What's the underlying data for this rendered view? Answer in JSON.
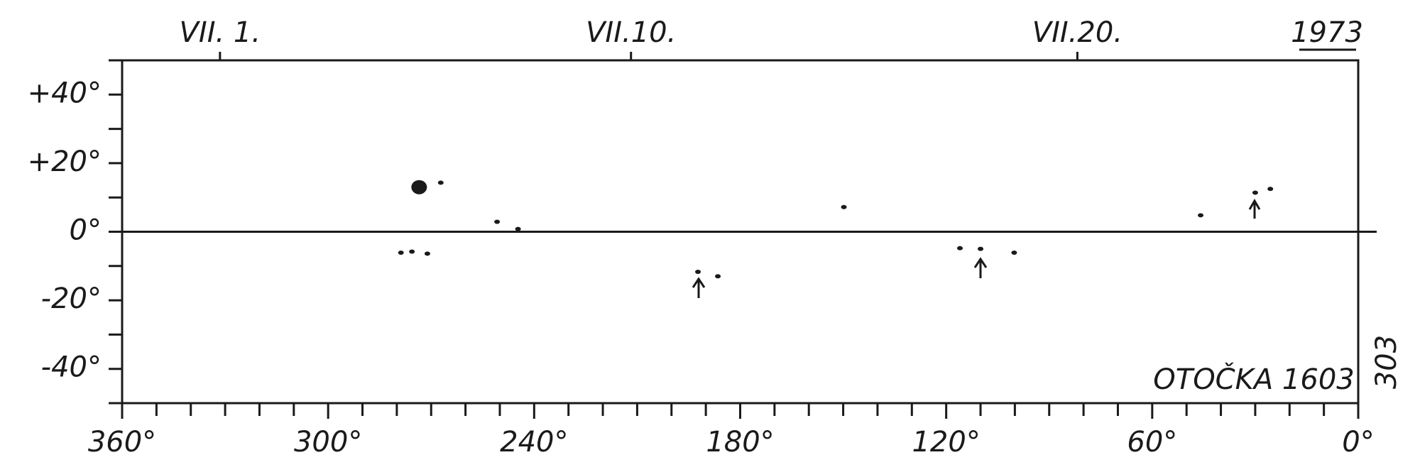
{
  "chart_data": {
    "type": "scatter",
    "title": "1973",
    "annotations": [
      "OTOČKA 1603",
      "303"
    ],
    "x": [
      273.5,
      267.2,
      250.8,
      244.7,
      278.8,
      275.6,
      271.1,
      192.3,
      186.5,
      149.8,
      116,
      110,
      100.2,
      45.9,
      30,
      25.6
    ],
    "values": [
      13,
      14.3,
      2.9,
      0.8,
      -6.1,
      -5.8,
      -6.4,
      -11.7,
      -13,
      7.2,
      -4.8,
      -5,
      -6.1,
      4.8,
      11.4,
      12.5
    ],
    "color": "#1a1a1a",
    "xlim": [
      360,
      0
    ],
    "ylim": [
      -50,
      50
    ],
    "xticks": [
      {
        "value": 360,
        "label": "360°"
      },
      {
        "value": 300,
        "label": "300°"
      },
      {
        "value": 240,
        "label": "240°"
      },
      {
        "value": 180,
        "label": "180°"
      },
      {
        "value": 120,
        "label": "120°"
      },
      {
        "value": 60,
        "label": "60°"
      },
      {
        "value": 0,
        "label": "0°"
      }
    ],
    "xminorticks": [
      350,
      340,
      330,
      320,
      310,
      290,
      280,
      270,
      260,
      250,
      230,
      220,
      210,
      200,
      190,
      170,
      160,
      150,
      140,
      130,
      110,
      100,
      90,
      80,
      70,
      50,
      40,
      30,
      20,
      10
    ],
    "x2ticks": [
      {
        "value": 331.5,
        "label": "VII. 1."
      },
      {
        "value": 211.8,
        "label": "VII.10."
      },
      {
        "value": 81.8,
        "label": "VII.20."
      }
    ],
    "yticks": [
      {
        "value": 40,
        "label": "+40°"
      },
      {
        "value": 20,
        "label": "+20°"
      },
      {
        "value": 0,
        "label": "0°"
      },
      {
        "value": -20,
        "label": "-20°"
      },
      {
        "value": -40,
        "label": "-40°"
      }
    ],
    "yminorticks": [
      50,
      30,
      10,
      -10,
      -30,
      -50
    ]
  }
}
